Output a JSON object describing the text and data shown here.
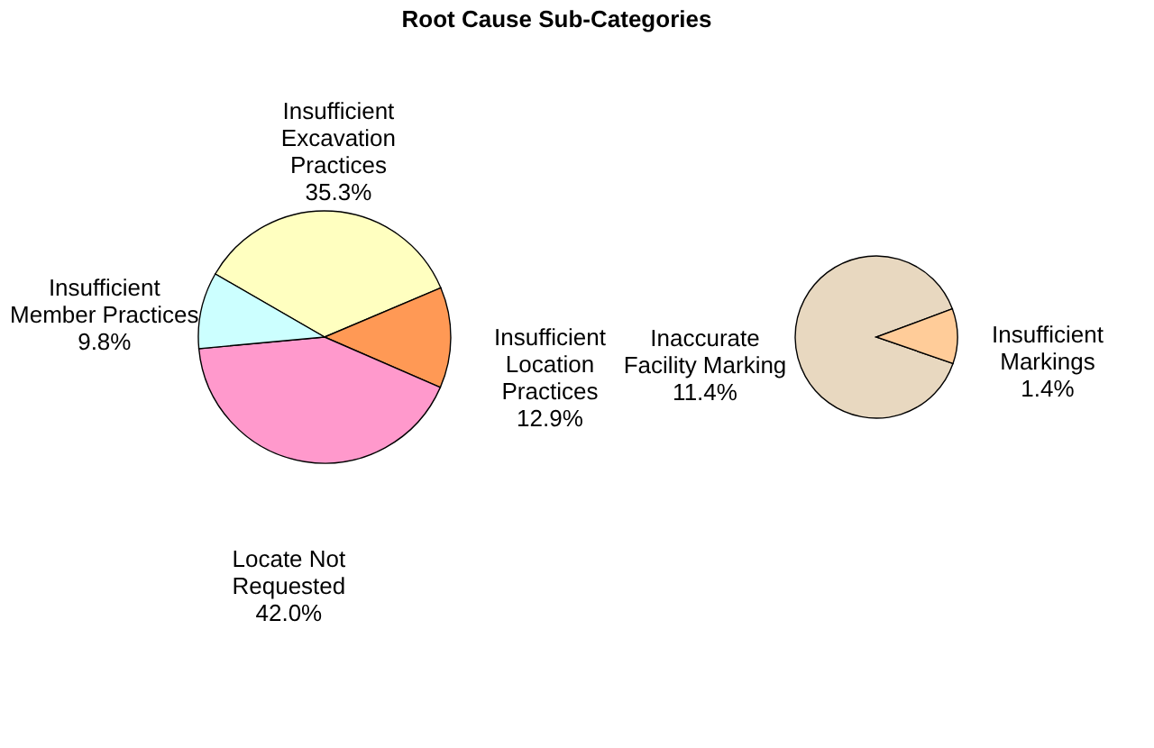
{
  "chart_data": [
    {
      "type": "pie",
      "title": "Root Cause Sub-Categories",
      "categories": [
        "Insufficient Excavation Practices",
        "Insufficient Location Practices",
        "Locate Not Requested",
        "Insufficient Member Practices"
      ],
      "values": [
        35.3,
        12.9,
        42.0,
        9.8
      ],
      "value_labels": [
        "35.3%",
        "12.9%",
        "42.0%",
        "9.8%"
      ],
      "colors": [
        "#ffffc0",
        "#ff9955",
        "#ff99cc",
        "#ccffff"
      ]
    },
    {
      "type": "pie",
      "categories": [
        "Inaccurate Facility Marking",
        "Insufficient Markings"
      ],
      "values": [
        11.4,
        1.4
      ],
      "value_labels": [
        "11.4%",
        "1.4%"
      ],
      "colors": [
        "#e8d8c0",
        "#ffcc99"
      ]
    }
  ]
}
